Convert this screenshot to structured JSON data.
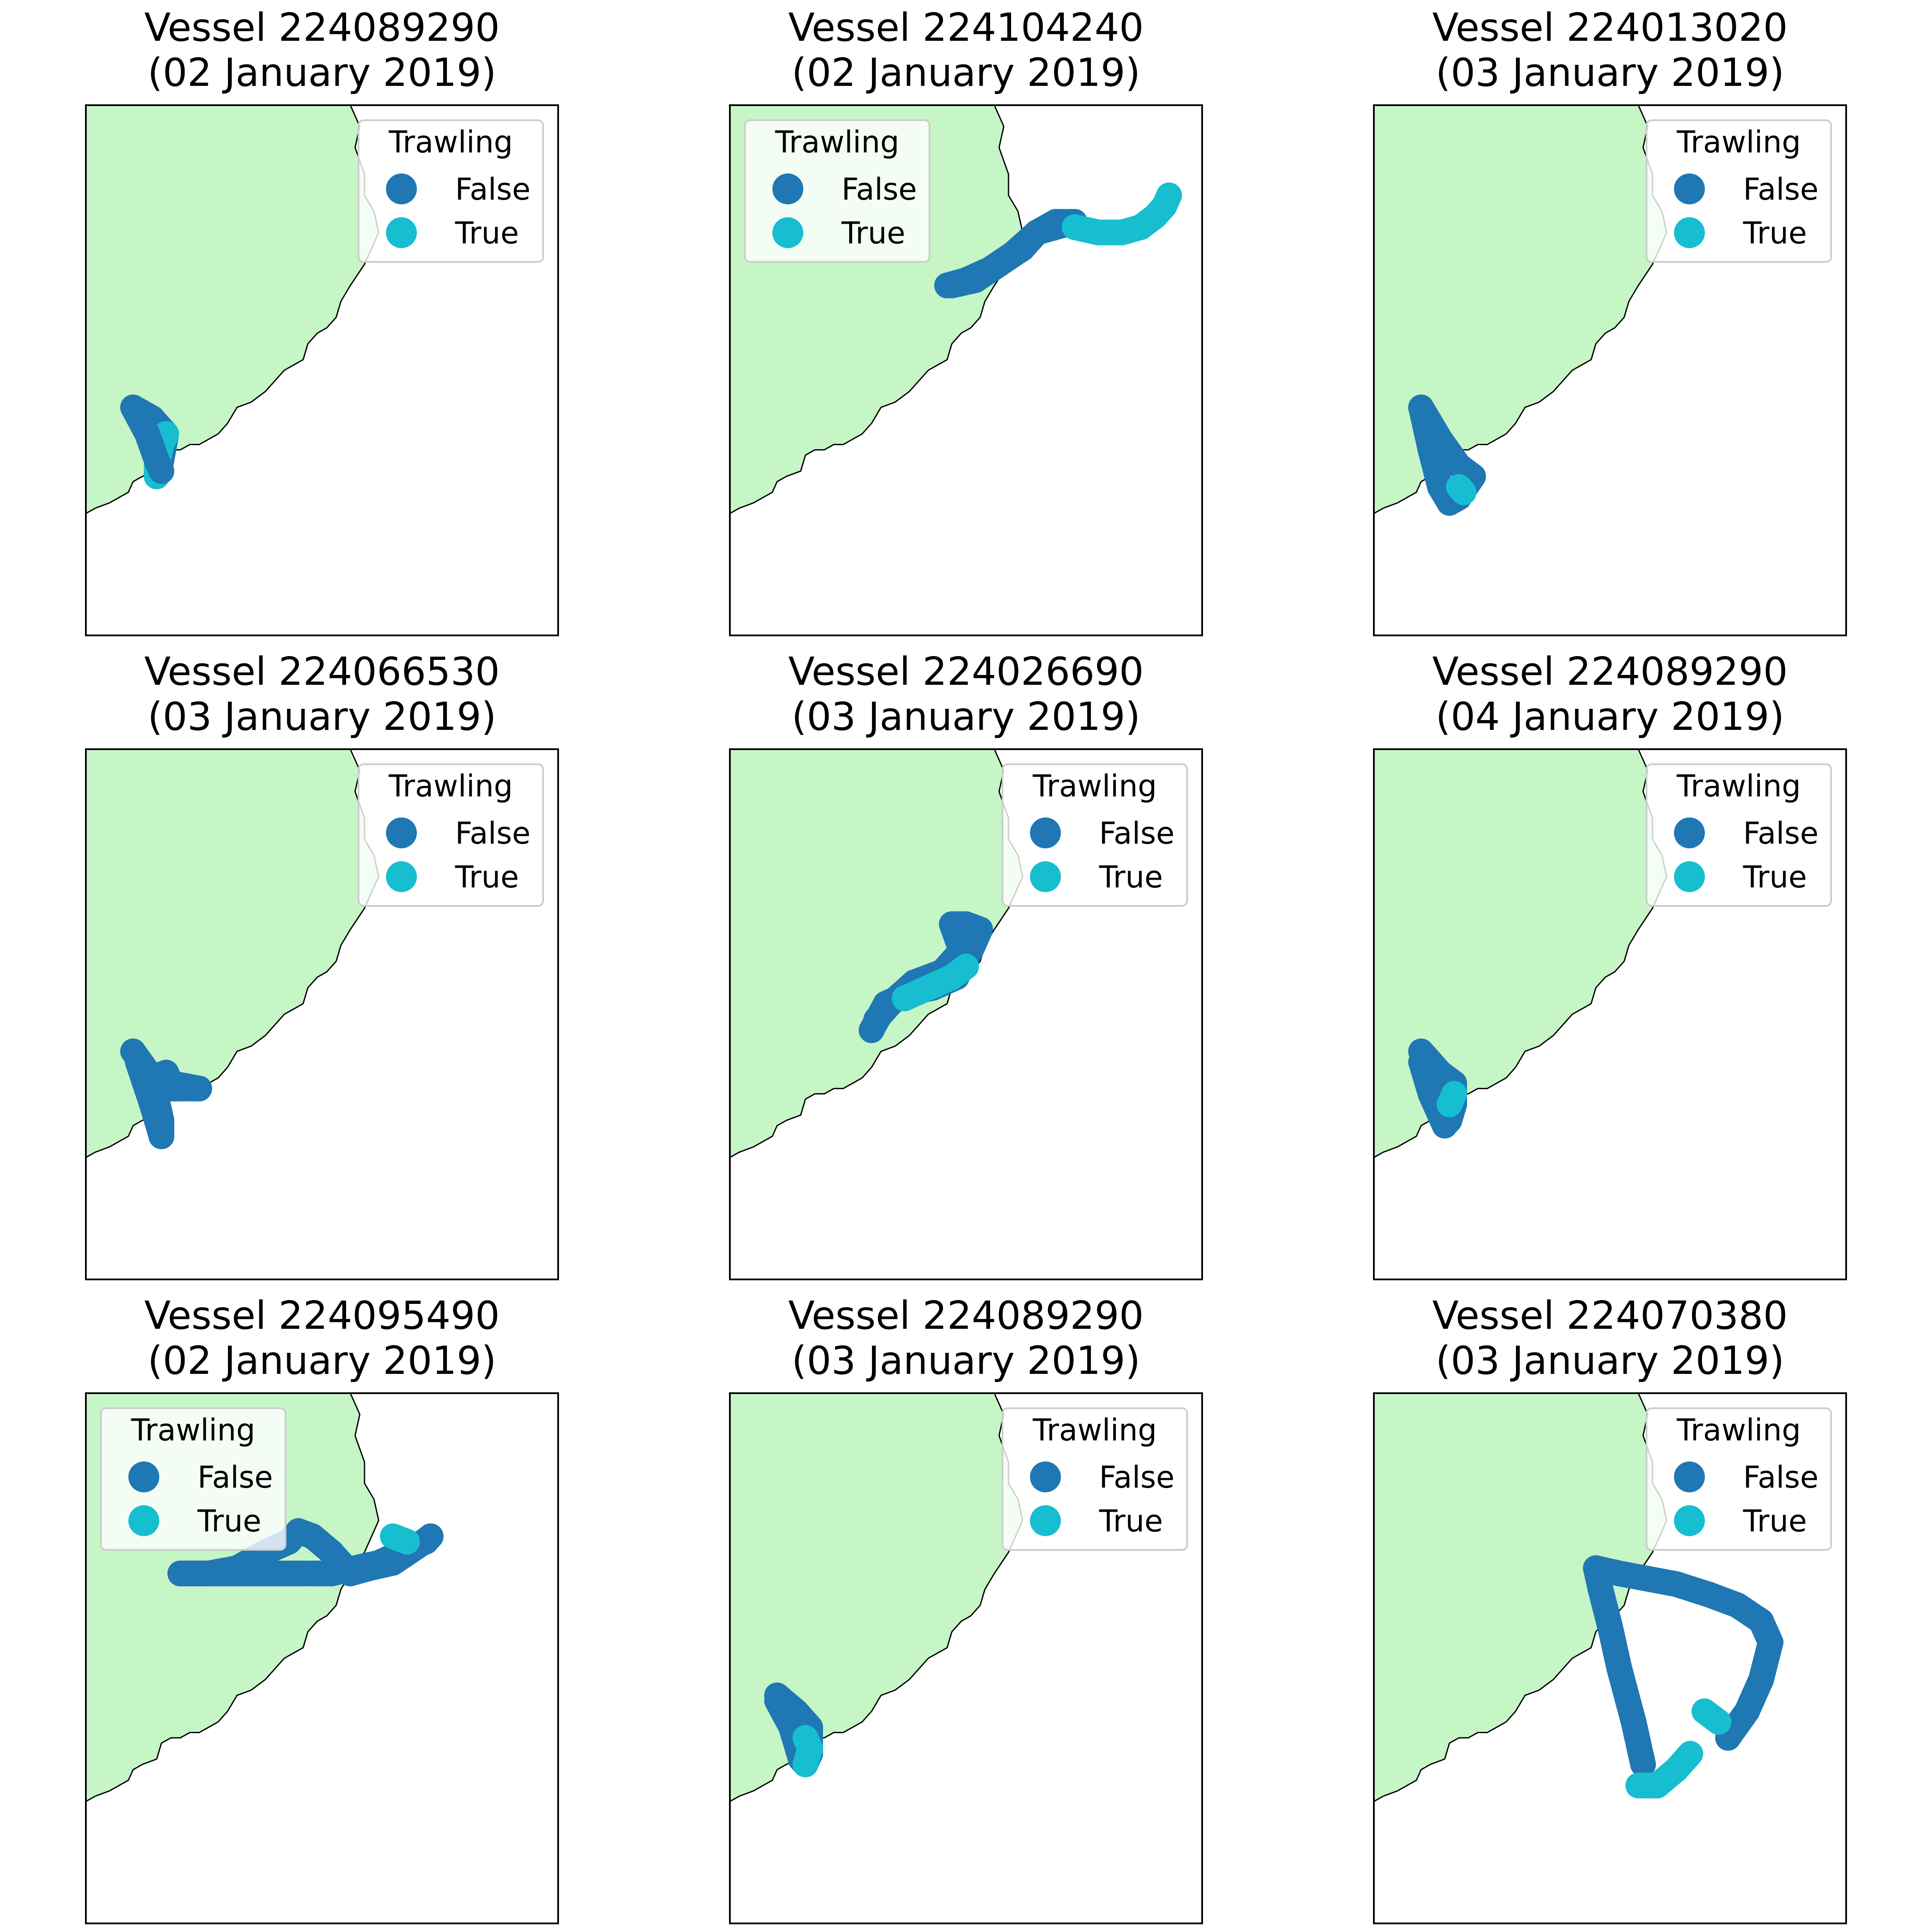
{
  "figure": {
    "legend_title": "Trawling",
    "legend_labels": [
      "False",
      "True"
    ],
    "colors": {
      "False": "#1f77b4",
      "True": "#17becf",
      "land": "#c6f5c6",
      "coast": "#000000",
      "frame": "#000000"
    }
  },
  "chart_data": [
    {
      "type": "scatter",
      "title": "Vessel 224089290\n(02 January 2019)",
      "legend_position": "upper right",
      "grid": false,
      "segments": [
        {
          "trawling": false,
          "points": [
            [
              0.1,
              0.43
            ],
            [
              0.14,
              0.41
            ],
            [
              0.17,
              0.38
            ],
            [
              0.16,
              0.33
            ],
            [
              0.15,
              0.3
            ]
          ]
        },
        {
          "trawling": true,
          "points": [
            [
              0.15,
              0.3
            ],
            [
              0.15,
              0.32
            ],
            [
              0.16,
              0.36
            ],
            [
              0.17,
              0.38
            ]
          ]
        },
        {
          "trawling": false,
          "points": [
            [
              0.1,
              0.43
            ],
            [
              0.13,
              0.38
            ],
            [
              0.15,
              0.33
            ],
            [
              0.16,
              0.31
            ]
          ]
        }
      ]
    },
    {
      "type": "scatter",
      "title": "Vessel 224104240\n(02 January 2019)",
      "legend_position": "upper left",
      "grid": false,
      "segments": [
        {
          "trawling": false,
          "points": [
            [
              0.47,
              0.66
            ],
            [
              0.52,
              0.67
            ],
            [
              0.57,
              0.7
            ],
            [
              0.62,
              0.73
            ],
            [
              0.65,
              0.76
            ],
            [
              0.69,
              0.78
            ],
            [
              0.73,
              0.78
            ],
            [
              0.65,
              0.76
            ],
            [
              0.6,
              0.72
            ],
            [
              0.55,
              0.69
            ],
            [
              0.5,
              0.67
            ],
            [
              0.46,
              0.66
            ]
          ]
        },
        {
          "trawling": true,
          "points": [
            [
              0.73,
              0.77
            ],
            [
              0.78,
              0.76
            ],
            [
              0.83,
              0.76
            ],
            [
              0.87,
              0.77
            ],
            [
              0.9,
              0.79
            ],
            [
              0.92,
              0.81
            ],
            [
              0.93,
              0.83
            ]
          ]
        }
      ]
    },
    {
      "type": "scatter",
      "title": "Vessel 224013020\n(03 January 2019)",
      "legend_position": "upper right",
      "grid": false,
      "segments": [
        {
          "trawling": false,
          "points": [
            [
              0.1,
              0.43
            ],
            [
              0.14,
              0.37
            ],
            [
              0.18,
              0.32
            ],
            [
              0.21,
              0.3
            ],
            [
              0.18,
              0.26
            ],
            [
              0.16,
              0.25
            ],
            [
              0.14,
              0.28
            ],
            [
              0.12,
              0.35
            ],
            [
              0.1,
              0.43
            ]
          ]
        },
        {
          "trawling": true,
          "points": [
            [
              0.18,
              0.28
            ],
            [
              0.19,
              0.27
            ]
          ]
        }
      ]
    },
    {
      "type": "scatter",
      "title": "Vessel 224066530\n(03 January 2019)",
      "legend_position": "upper right",
      "grid": false,
      "segments": [
        {
          "trawling": false,
          "points": [
            [
              0.1,
              0.43
            ],
            [
              0.14,
              0.38
            ],
            [
              0.17,
              0.36
            ],
            [
              0.2,
              0.36
            ],
            [
              0.24,
              0.36
            ],
            [
              0.18,
              0.37
            ],
            [
              0.17,
              0.39
            ],
            [
              0.14,
              0.38
            ],
            [
              0.16,
              0.3
            ],
            [
              0.16,
              0.27
            ],
            [
              0.14,
              0.33
            ],
            [
              0.11,
              0.41
            ]
          ]
        }
      ]
    },
    {
      "type": "scatter",
      "title": "Vessel 224026690\n(03 January 2019)",
      "legend_position": "upper right",
      "grid": false,
      "segments": [
        {
          "trawling": false,
          "points": [
            [
              0.3,
              0.47
            ],
            [
              0.33,
              0.52
            ],
            [
              0.38,
              0.54
            ],
            [
              0.43,
              0.55
            ],
            [
              0.48,
              0.57
            ],
            [
              0.51,
              0.62
            ],
            [
              0.53,
              0.66
            ],
            [
              0.5,
              0.67
            ],
            [
              0.47,
              0.67
            ],
            [
              0.49,
              0.62
            ],
            [
              0.45,
              0.58
            ],
            [
              0.39,
              0.56
            ],
            [
              0.34,
              0.52
            ],
            [
              0.31,
              0.49
            ]
          ]
        },
        {
          "trawling": true,
          "points": [
            [
              0.37,
              0.53
            ],
            [
              0.42,
              0.55
            ],
            [
              0.47,
              0.57
            ],
            [
              0.5,
              0.59
            ]
          ]
        }
      ]
    },
    {
      "type": "scatter",
      "title": "Vessel 224089290\n(04 January 2019)",
      "legend_position": "upper right",
      "grid": false,
      "segments": [
        {
          "trawling": false,
          "points": [
            [
              0.1,
              0.43
            ],
            [
              0.14,
              0.39
            ],
            [
              0.17,
              0.37
            ],
            [
              0.17,
              0.33
            ],
            [
              0.16,
              0.3
            ],
            [
              0.15,
              0.29
            ],
            [
              0.12,
              0.35
            ],
            [
              0.1,
              0.41
            ]
          ]
        },
        {
          "trawling": true,
          "points": [
            [
              0.16,
              0.33
            ],
            [
              0.17,
              0.35
            ]
          ]
        }
      ]
    },
    {
      "type": "scatter",
      "title": "Vessel 224095490\n(02 January 2019)",
      "legend_position": "upper left",
      "grid": false,
      "segments": [
        {
          "trawling": false,
          "points": [
            [
              0.47,
              0.66
            ],
            [
              0.52,
              0.66
            ],
            [
              0.57,
              0.67
            ],
            [
              0.62,
              0.68
            ],
            [
              0.67,
              0.7
            ],
            [
              0.72,
              0.72
            ],
            [
              0.73,
              0.73
            ],
            [
              0.7,
              0.71
            ],
            [
              0.65,
              0.68
            ],
            [
              0.6,
              0.67
            ],
            [
              0.56,
              0.66
            ],
            [
              0.52,
              0.7
            ],
            [
              0.48,
              0.73
            ],
            [
              0.45,
              0.74
            ],
            [
              0.43,
              0.72
            ],
            [
              0.38,
              0.7
            ],
            [
              0.32,
              0.67
            ],
            [
              0.26,
              0.66
            ],
            [
              0.23,
              0.66
            ],
            [
              0.2,
              0.66
            ],
            [
              0.46,
              0.66
            ]
          ]
        },
        {
          "trawling": true,
          "points": [
            [
              0.65,
              0.73
            ],
            [
              0.68,
              0.72
            ]
          ]
        }
      ]
    },
    {
      "type": "scatter",
      "title": "Vessel 224089290\n(03 January 2019)",
      "legend_position": "upper right",
      "grid": false,
      "segments": [
        {
          "trawling": false,
          "points": [
            [
              0.1,
              0.43
            ],
            [
              0.14,
              0.4
            ],
            [
              0.17,
              0.37
            ],
            [
              0.17,
              0.32
            ],
            [
              0.16,
              0.3
            ],
            [
              0.15,
              0.31
            ],
            [
              0.13,
              0.37
            ],
            [
              0.1,
              0.42
            ]
          ]
        },
        {
          "trawling": true,
          "points": [
            [
              0.16,
              0.35
            ],
            [
              0.17,
              0.33
            ],
            [
              0.16,
              0.3
            ]
          ]
        }
      ]
    },
    {
      "type": "scatter",
      "title": "Vessel 224070380\n(03 January 2019)",
      "legend_position": "upper right",
      "grid": false,
      "segments": [
        {
          "trawling": false,
          "points": [
            [
              0.57,
              0.3
            ],
            [
              0.55,
              0.38
            ],
            [
              0.52,
              0.48
            ],
            [
              0.5,
              0.56
            ],
            [
              0.48,
              0.63
            ],
            [
              0.47,
              0.67
            ],
            [
              0.52,
              0.66
            ],
            [
              0.58,
              0.65
            ],
            [
              0.64,
              0.64
            ],
            [
              0.71,
              0.62
            ],
            [
              0.77,
              0.6
            ],
            [
              0.82,
              0.57
            ],
            [
              0.84,
              0.53
            ],
            [
              0.82,
              0.46
            ],
            [
              0.79,
              0.4
            ],
            [
              0.75,
              0.35
            ]
          ]
        },
        {
          "trawling": true,
          "points": [
            [
              0.7,
              0.4
            ],
            [
              0.73,
              0.38
            ]
          ]
        },
        {
          "trawling": true,
          "points": [
            [
              0.67,
              0.32
            ],
            [
              0.64,
              0.29
            ],
            [
              0.6,
              0.26
            ],
            [
              0.56,
              0.26
            ]
          ]
        }
      ]
    }
  ]
}
